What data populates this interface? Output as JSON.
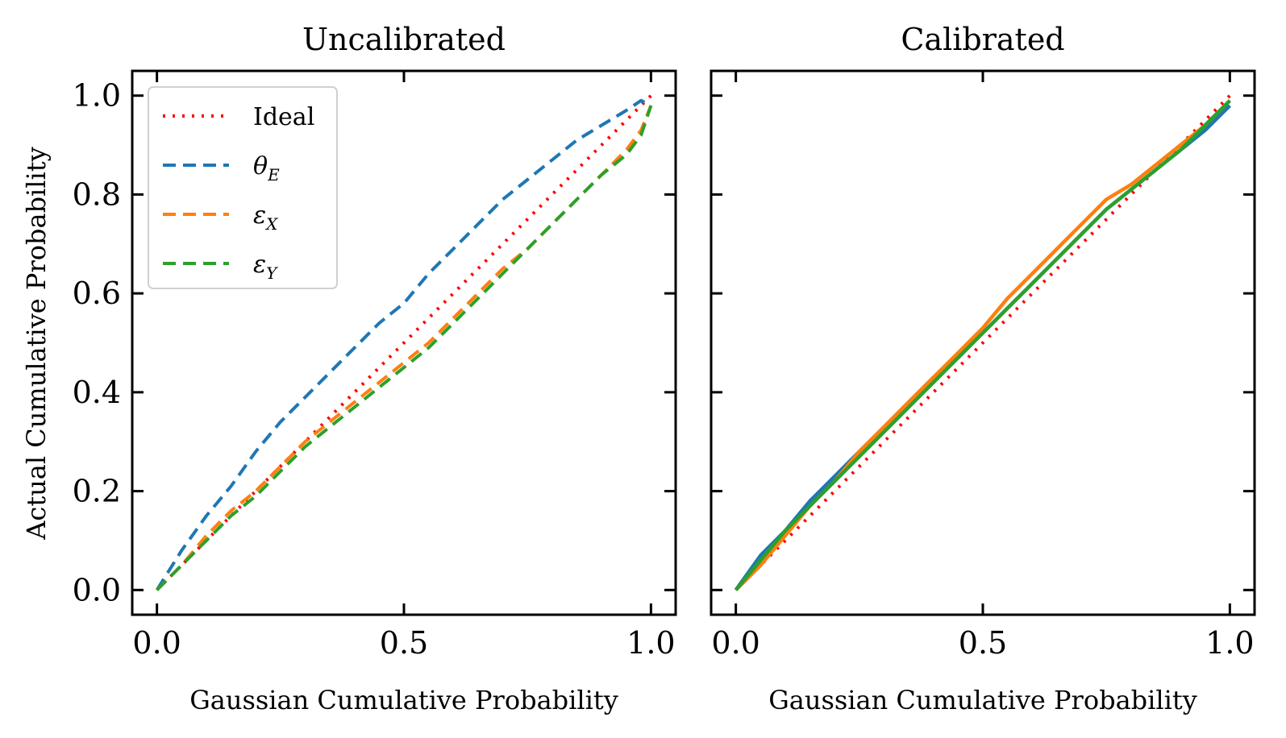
{
  "chart_data": [
    {
      "type": "line",
      "title": "Uncalibrated",
      "xlabel": "Gaussian Cumulative Probability",
      "ylabel": "Actual Cumulative Probability",
      "xlim": [
        -0.05,
        1.05
      ],
      "ylim": [
        -0.05,
        1.05
      ],
      "xticks": [
        "0.0",
        "0.5",
        "1.0"
      ],
      "yticks": [
        "0.0",
        "0.2",
        "0.4",
        "0.6",
        "0.8",
        "1.0"
      ],
      "grid": false,
      "legend": {
        "placement": "top-left",
        "show": true
      },
      "series": [
        {
          "name": "Ideal",
          "color": "#ff0000",
          "style": "dotted",
          "x": [
            0,
            1
          ],
          "y": [
            0,
            1
          ]
        },
        {
          "name": "θ_E",
          "color": "#1f77b4",
          "style": "dashed",
          "x": [
            0,
            0.05,
            0.1,
            0.15,
            0.2,
            0.25,
            0.3,
            0.35,
            0.4,
            0.45,
            0.5,
            0.55,
            0.6,
            0.65,
            0.7,
            0.75,
            0.8,
            0.85,
            0.9,
            0.95,
            0.98,
            1.0
          ],
          "y": [
            0,
            0.08,
            0.15,
            0.21,
            0.28,
            0.34,
            0.39,
            0.44,
            0.49,
            0.54,
            0.58,
            0.64,
            0.69,
            0.74,
            0.79,
            0.83,
            0.87,
            0.91,
            0.94,
            0.97,
            0.99,
            0.98
          ]
        },
        {
          "name": "ε_X",
          "color": "#ff7f0e",
          "style": "dashed",
          "x": [
            0,
            0.05,
            0.1,
            0.15,
            0.2,
            0.25,
            0.3,
            0.35,
            0.4,
            0.45,
            0.5,
            0.55,
            0.6,
            0.65,
            0.7,
            0.75,
            0.8,
            0.85,
            0.9,
            0.95,
            0.98,
            1.0
          ],
          "y": [
            0,
            0.05,
            0.11,
            0.16,
            0.2,
            0.25,
            0.3,
            0.34,
            0.38,
            0.42,
            0.46,
            0.5,
            0.55,
            0.6,
            0.65,
            0.69,
            0.74,
            0.79,
            0.84,
            0.89,
            0.93,
            0.98
          ]
        },
        {
          "name": "ε_Y",
          "color": "#2ca02c",
          "style": "dashed",
          "x": [
            0,
            0.05,
            0.1,
            0.15,
            0.2,
            0.25,
            0.3,
            0.35,
            0.4,
            0.45,
            0.5,
            0.55,
            0.6,
            0.65,
            0.7,
            0.75,
            0.8,
            0.85,
            0.9,
            0.95,
            0.98,
            1.0
          ],
          "y": [
            0,
            0.05,
            0.1,
            0.15,
            0.19,
            0.24,
            0.29,
            0.33,
            0.37,
            0.41,
            0.45,
            0.49,
            0.54,
            0.59,
            0.64,
            0.69,
            0.74,
            0.79,
            0.84,
            0.88,
            0.92,
            0.98
          ]
        }
      ]
    },
    {
      "type": "line",
      "title": "Calibrated",
      "xlabel": "Gaussian Cumulative Probability",
      "ylabel": "",
      "xlim": [
        -0.05,
        1.05
      ],
      "ylim": [
        -0.05,
        1.05
      ],
      "xticks": [
        "0.0",
        "0.5",
        "1.0"
      ],
      "yticks": [],
      "grid": false,
      "legend": {
        "show": false
      },
      "series": [
        {
          "name": "Ideal",
          "color": "#ff0000",
          "style": "dotted",
          "x": [
            0,
            1
          ],
          "y": [
            0,
            1
          ]
        },
        {
          "name": "θ_E",
          "color": "#1f77b4",
          "style": "solid",
          "x": [
            0,
            0.05,
            0.1,
            0.15,
            0.2,
            0.25,
            0.3,
            0.35,
            0.4,
            0.45,
            0.5,
            0.55,
            0.6,
            0.65,
            0.7,
            0.75,
            0.8,
            0.85,
            0.9,
            0.95,
            1.0
          ],
          "y": [
            0,
            0.07,
            0.12,
            0.18,
            0.23,
            0.28,
            0.33,
            0.38,
            0.43,
            0.47,
            0.52,
            0.57,
            0.62,
            0.67,
            0.72,
            0.77,
            0.81,
            0.85,
            0.89,
            0.93,
            0.98
          ]
        },
        {
          "name": "ε_X",
          "color": "#ff7f0e",
          "style": "solid",
          "x": [
            0,
            0.05,
            0.1,
            0.15,
            0.2,
            0.25,
            0.3,
            0.35,
            0.4,
            0.45,
            0.5,
            0.55,
            0.6,
            0.65,
            0.7,
            0.75,
            0.8,
            0.85,
            0.9,
            0.95,
            1.0
          ],
          "y": [
            0,
            0.05,
            0.11,
            0.17,
            0.22,
            0.28,
            0.33,
            0.38,
            0.43,
            0.48,
            0.53,
            0.59,
            0.64,
            0.69,
            0.74,
            0.79,
            0.82,
            0.86,
            0.9,
            0.94,
            0.99
          ]
        },
        {
          "name": "ε_Y",
          "color": "#2ca02c",
          "style": "solid",
          "x": [
            0,
            0.05,
            0.1,
            0.15,
            0.2,
            0.25,
            0.3,
            0.35,
            0.4,
            0.45,
            0.5,
            0.55,
            0.6,
            0.65,
            0.7,
            0.75,
            0.8,
            0.85,
            0.9,
            0.95,
            1.0
          ],
          "y": [
            0,
            0.06,
            0.12,
            0.17,
            0.22,
            0.27,
            0.32,
            0.37,
            0.42,
            0.47,
            0.52,
            0.57,
            0.62,
            0.67,
            0.72,
            0.77,
            0.81,
            0.85,
            0.89,
            0.94,
            0.99
          ]
        }
      ]
    }
  ]
}
